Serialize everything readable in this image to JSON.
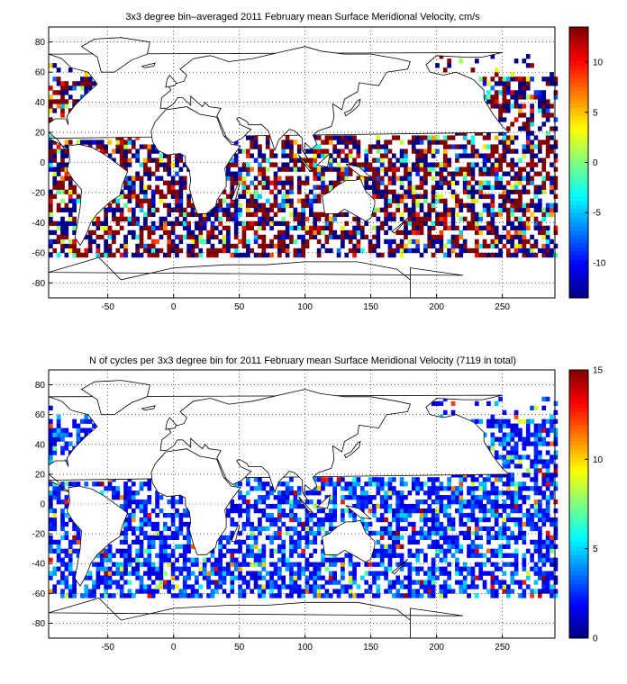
{
  "chart_data": [
    {
      "type": "heatmap",
      "title": "3x3 degree bin–averaged 2011 February mean Surface Meridional Velocity, cm/s",
      "xlabel": "",
      "ylabel": "",
      "xlim": [
        -95,
        290
      ],
      "ylim": [
        -90,
        90
      ],
      "xticks": [
        -50,
        0,
        50,
        100,
        150,
        200,
        250
      ],
      "yticks": [
        80,
        60,
        40,
        20,
        0,
        -20,
        -40,
        -60,
        -80
      ],
      "grid": true,
      "bin_size_deg": 3,
      "colormap": "jet",
      "colorbar": {
        "range": [
          -13.5,
          13.5
        ],
        "ticks": [
          10,
          5,
          0,
          -5,
          -10
        ],
        "position": "right"
      },
      "data_summary": "Scattered bins of mean meridional surface velocity over world oceans (about 60S to 70N), values mostly saturating near +/-13 cm/s in red and dark blue, with cyan/yellow intermediate values."
    },
    {
      "type": "heatmap",
      "title": "N of cycles per 3x3 degree bin for 2011 February mean Surface Meridional Velocity (7119 in total)",
      "xlabel": "",
      "ylabel": "",
      "xlim": [
        -95,
        290
      ],
      "ylim": [
        -90,
        90
      ],
      "xticks": [
        -50,
        0,
        50,
        100,
        150,
        200,
        250
      ],
      "yticks": [
        80,
        60,
        40,
        20,
        0,
        -20,
        -40,
        -60,
        -80
      ],
      "grid": true,
      "bin_size_deg": 3,
      "colormap": "jet",
      "total_cycles": 7119,
      "colorbar": {
        "range": [
          0,
          15
        ],
        "ticks": [
          15,
          10,
          5,
          0
        ],
        "position": "right"
      },
      "data_summary": "Bin counts of float cycles; most bins hold 1-4 cycles (blue), a few coastal bins near Japan and the Indian Ocean reach 10-15 (yellow to red)."
    }
  ]
}
